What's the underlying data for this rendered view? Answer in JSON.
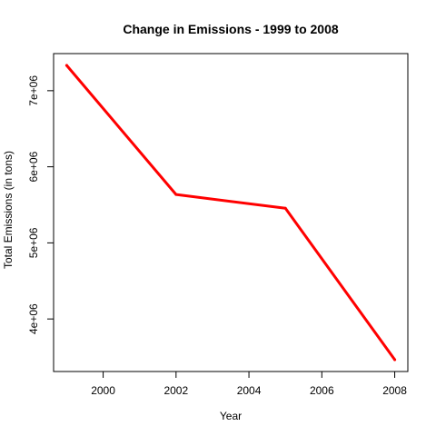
{
  "chart_data": {
    "type": "line",
    "title": "Change in Emissions - 1999 to 2008",
    "xlabel": "Year",
    "ylabel": "Total Emissions (in tons)",
    "x": [
      1999,
      2002,
      2005,
      2008
    ],
    "series": [
      {
        "values": [
          7332967,
          5635780,
          5454703,
          3464206
        ],
        "color": "#ff0000"
      }
    ],
    "xlim": [
      1999,
      2008
    ],
    "ylim": [
      3464206,
      7332967
    ],
    "xticks": [
      2000,
      2002,
      2004,
      2006,
      2008
    ],
    "xtick_labels": [
      "2000",
      "2002",
      "2004",
      "2006",
      "2008"
    ],
    "yticks": [
      4000000,
      5000000,
      6000000,
      7000000
    ],
    "ytick_labels": [
      "4e+06",
      "5e+06",
      "6e+06",
      "7e+06"
    ],
    "grid": false,
    "legend": "none"
  }
}
